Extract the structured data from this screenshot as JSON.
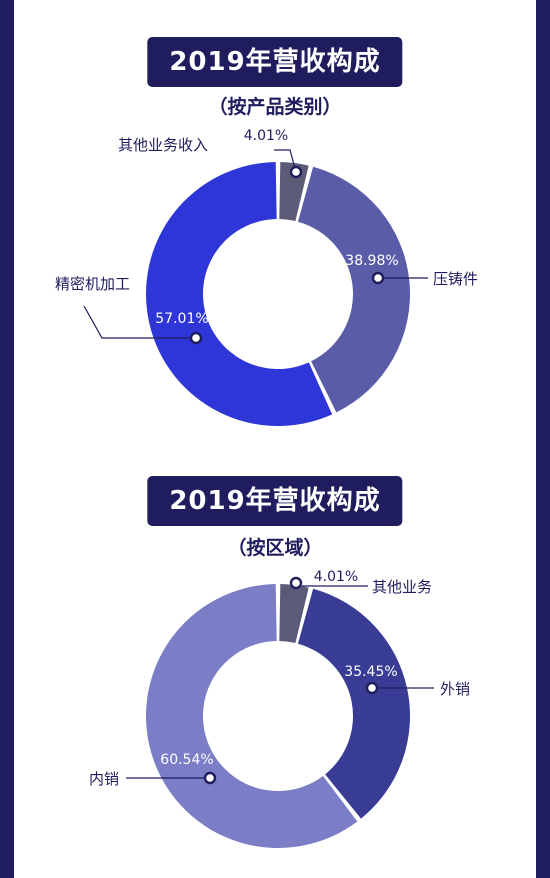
{
  "chart_data": [
    {
      "type": "pie",
      "title": "2019年营收构成",
      "subtitle": "（按产品类别）",
      "series": [
        {
          "name": "其他业务收入",
          "value": 4.01,
          "label": "4.01%",
          "color": "#5b5b78"
        },
        {
          "name": "压铸件",
          "value": 38.98,
          "label": "38.98%",
          "color": "#5b5ca8"
        },
        {
          "name": "精密机加工",
          "value": 57.01,
          "label": "57.01%",
          "color": "#2f36d8"
        }
      ]
    },
    {
      "type": "pie",
      "title": "2019年营收构成",
      "subtitle": "（按区域）",
      "series": [
        {
          "name": "其他业务",
          "value": 4.01,
          "label": "4.01%",
          "color": "#5b5b78"
        },
        {
          "name": "外销",
          "value": 35.45,
          "label": "35.45%",
          "color": "#383c94"
        },
        {
          "name": "内销",
          "value": 60.54,
          "label": "60.54%",
          "color": "#7b7dc6"
        }
      ]
    }
  ]
}
